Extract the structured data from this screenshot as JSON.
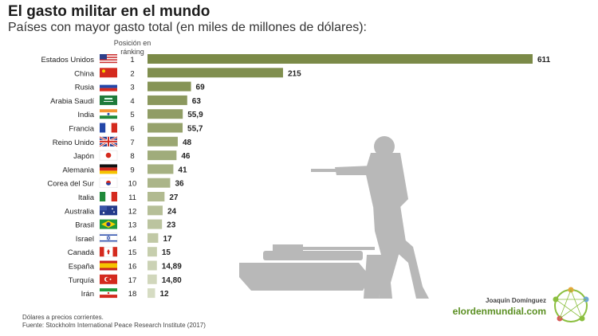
{
  "title": "El gasto militar en el mundo",
  "subtitle": "Países con mayor gasto total (en miles de millones de dólares):",
  "rank_header": "Posición en ránking",
  "notes": [
    "Dólares a precios corrientes.",
    "Fuente: Stockholm International Peace Research Institute (2017)"
  ],
  "author": "Joaquín Domínguez",
  "site": "elordenmundial.com",
  "colors": {
    "bar_dark": "#7b8a48",
    "bar_light": "#d6dcc3",
    "silhouette": "#b8b8b8",
    "site": "#5b8f22"
  },
  "chart_data": {
    "type": "bar",
    "orientation": "horizontal",
    "categories": [
      "Estados Unidos",
      "China",
      "Rusia",
      "Arabia Saudí",
      "India",
      "Francia",
      "Reino Unido",
      "Japón",
      "Alemania",
      "Corea del Sur",
      "Italia",
      "Australia",
      "Brasil",
      "Israel",
      "Canadá",
      "España",
      "Turquía",
      "Irán"
    ],
    "ranks": [
      1,
      2,
      3,
      4,
      5,
      6,
      7,
      8,
      9,
      10,
      11,
      12,
      13,
      14,
      15,
      16,
      17,
      18
    ],
    "values": [
      611,
      215,
      69,
      63,
      55.9,
      55.7,
      48,
      46,
      41,
      36,
      27,
      24,
      23,
      17,
      15,
      14.89,
      14.8,
      12
    ],
    "value_labels": [
      "611",
      "215",
      "69",
      "63",
      "55,9",
      "55,7",
      "48",
      "46",
      "41",
      "36",
      "27",
      "24",
      "23",
      "17",
      "15",
      "14,89",
      "14,80",
      "12"
    ],
    "flags": [
      "flag-usa",
      "flag-china",
      "flag-russia",
      "flag-saudi-arabia",
      "flag-india",
      "flag-france",
      "flag-uk",
      "flag-japan",
      "flag-germany",
      "flag-south-korea",
      "flag-italy",
      "flag-australia",
      "flag-brazil",
      "flag-israel",
      "flag-canada",
      "flag-spain",
      "flag-turkey",
      "flag-iran"
    ],
    "xlim": [
      0,
      611
    ],
    "grid": false,
    "legend": "none"
  }
}
